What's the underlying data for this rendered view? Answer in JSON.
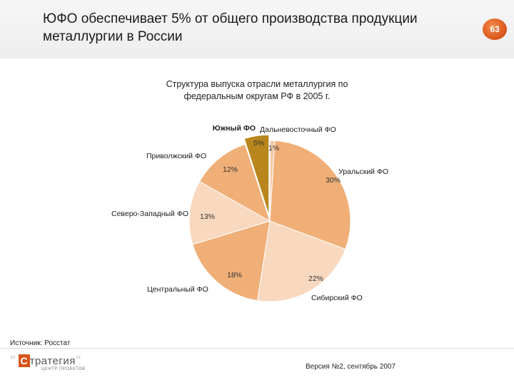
{
  "slide": {
    "title_line1": "ЮФО обеспечивает 5% от общего производства продукции",
    "title_line2": "металлургии в России",
    "page_number": "63"
  },
  "chart_data": {
    "type": "pie",
    "title_line1": "Структура выпуска отрасли металлургия по",
    "title_line2": "федеральным округам РФ в 2005 г.",
    "slices": [
      {
        "name": "Дальневосточный ФО",
        "value": 1,
        "label": "1%",
        "color": "#f5c9a8"
      },
      {
        "name": "Уральский ФО",
        "value": 30,
        "label": "30%",
        "color": "#efaf77"
      },
      {
        "name": "Сибирский ФО",
        "value": 22,
        "label": "22%",
        "color": "#f8d8be"
      },
      {
        "name": "Центральный ФО",
        "value": 18,
        "label": "18%",
        "color": "#efaf77"
      },
      {
        "name": "Северо-Западный ФО",
        "value": 13,
        "label": "13%",
        "color": "#f8d8be"
      },
      {
        "name": "Приволжский ФО",
        "value": 12,
        "label": "12%",
        "color": "#efaf77"
      },
      {
        "name": "Южный ФО",
        "value": 5,
        "label": "5%",
        "color": "#b8861c"
      }
    ],
    "highlight": "Южный ФО"
  },
  "footer": {
    "source": "Источник: Росстат",
    "logo_text": "тратегия",
    "logo_letter": "С",
    "logo_tagline": "ЦЕНТР ПРОЕКТОВ",
    "version": "Версия №2, сентябрь 2007"
  }
}
